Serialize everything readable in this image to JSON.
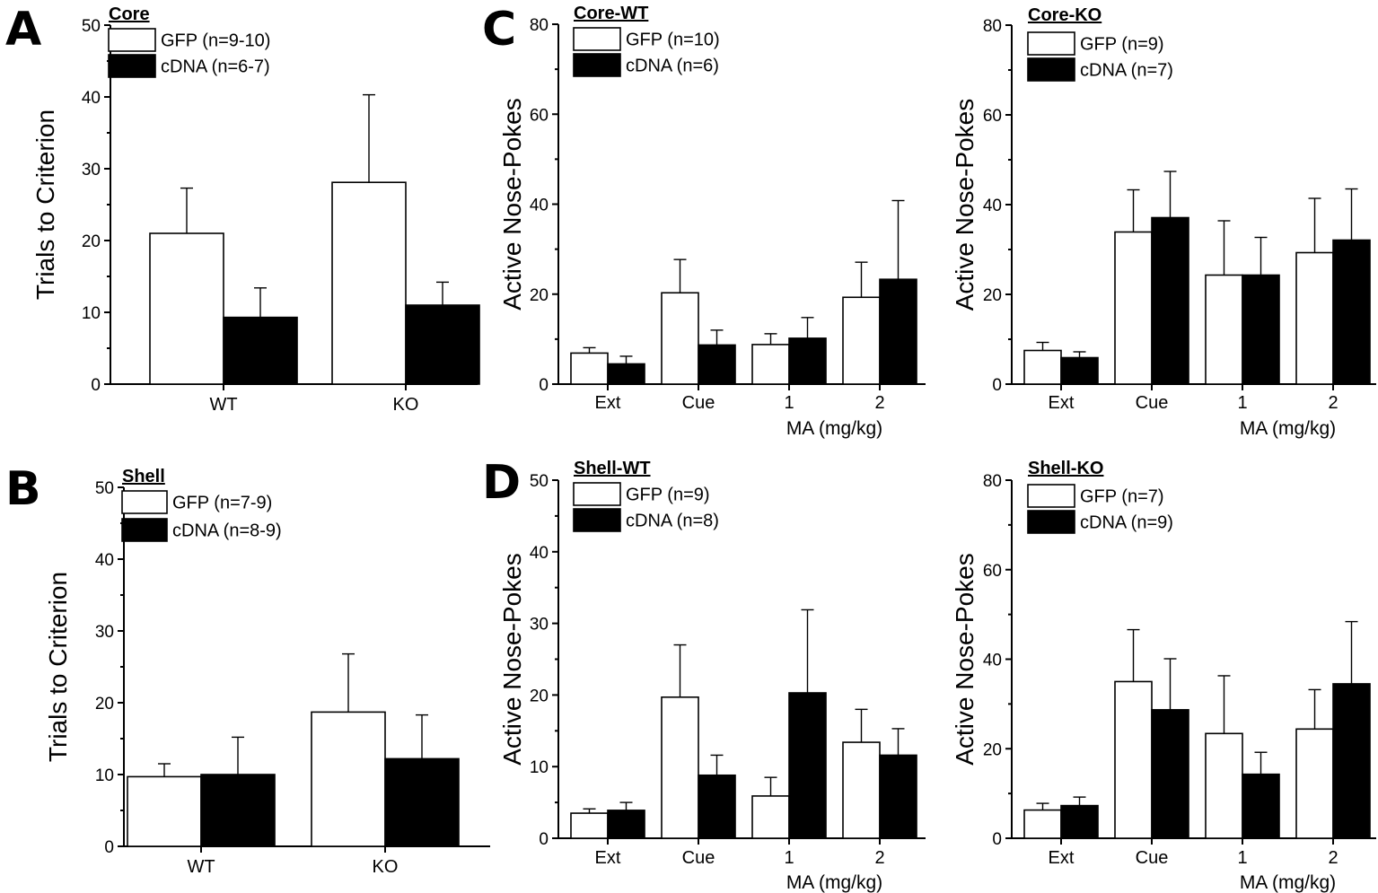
{
  "figure": {
    "colors": {
      "gfp": "#ffffff",
      "cdna": "#000000",
      "stroke": "#000000"
    },
    "panel_labels": [
      "A",
      "B",
      "C",
      "D"
    ]
  },
  "chart_data": [
    {
      "id": "A",
      "type": "bar",
      "panel_label": "A",
      "title": "Core",
      "xlabel": "",
      "ylabel": "Trials to Criterion",
      "ylim": [
        0,
        50
      ],
      "yticks": [
        0,
        10,
        20,
        30,
        40,
        50
      ],
      "categories": [
        "WT",
        "KO"
      ],
      "series": [
        {
          "name": "GFP (n=9-10)",
          "key": "gfp",
          "values": [
            21,
            28.1
          ],
          "errors": [
            6.3,
            12.2
          ]
        },
        {
          "name": "cDNA (n=6-7)",
          "key": "cdna",
          "values": [
            9.3,
            11
          ],
          "errors": [
            4.1,
            3.2
          ]
        }
      ]
    },
    {
      "id": "B",
      "type": "bar",
      "panel_label": "B",
      "title": "Shell",
      "xlabel": "",
      "ylabel": "Trials to Criterion",
      "ylim": [
        0,
        50
      ],
      "yticks": [
        0,
        10,
        20,
        30,
        40,
        50
      ],
      "categories": [
        "WT",
        "KO"
      ],
      "series": [
        {
          "name": "GFP (n=7-9)",
          "key": "gfp",
          "values": [
            9.7,
            18.7
          ],
          "errors": [
            1.8,
            8.1
          ]
        },
        {
          "name": "cDNA (n=8-9)",
          "key": "cdna",
          "values": [
            10,
            12.2
          ],
          "errors": [
            5.2,
            6.1
          ]
        }
      ]
    },
    {
      "id": "C1",
      "type": "bar",
      "panel_label": "C",
      "title": "Core-WT",
      "xlabel": "MA (mg/kg)",
      "ylabel": "Active Nose-Pokes",
      "ylim": [
        0,
        80
      ],
      "yticks": [
        0,
        20,
        40,
        60,
        80
      ],
      "categories": [
        "Ext",
        "Cue",
        "1",
        "2"
      ],
      "series": [
        {
          "name": "GFP (n=10)",
          "key": "gfp",
          "values": [
            6.9,
            20.3,
            8.8,
            19.3
          ],
          "errors": [
            1.2,
            7.4,
            2.4,
            7.8
          ]
        },
        {
          "name": "cDNA (n=6)",
          "key": "cdna",
          "values": [
            4.5,
            8.7,
            10.2,
            23.3
          ],
          "errors": [
            1.7,
            3.3,
            4.6,
            17.5
          ]
        }
      ]
    },
    {
      "id": "C2",
      "type": "bar",
      "panel_label": "",
      "title": "Core-KO",
      "xlabel": "MA (mg/kg)",
      "ylabel": "Active Nose-Pokes",
      "ylim": [
        0,
        80
      ],
      "yticks": [
        0,
        20,
        40,
        60,
        80
      ],
      "categories": [
        "Ext",
        "Cue",
        "1",
        "2"
      ],
      "series": [
        {
          "name": "GFP (n=9)",
          "key": "gfp",
          "values": [
            7.5,
            33.9,
            24.3,
            29.3
          ],
          "errors": [
            1.8,
            9.4,
            12.1,
            12.1
          ]
        },
        {
          "name": "cDNA (n=7)",
          "key": "cdna",
          "values": [
            5.9,
            37.1,
            24.3,
            32.1
          ],
          "errors": [
            1.3,
            10.3,
            8.4,
            11.4
          ]
        }
      ]
    },
    {
      "id": "D1",
      "type": "bar",
      "panel_label": "D",
      "title": "Shell-WT",
      "xlabel": "MA (mg/kg)",
      "ylabel": "Active Nose-Pokes",
      "ylim": [
        0,
        50
      ],
      "yticks": [
        0,
        10,
        20,
        30,
        40,
        50
      ],
      "categories": [
        "Ext",
        "Cue",
        "1",
        "2"
      ],
      "series": [
        {
          "name": "GFP (n=9)",
          "key": "gfp",
          "values": [
            3.5,
            19.7,
            5.9,
            13.4
          ],
          "errors": [
            0.6,
            7.3,
            2.6,
            4.6
          ]
        },
        {
          "name": "cDNA (n=8)",
          "key": "cdna",
          "values": [
            3.9,
            8.8,
            20.3,
            11.6
          ],
          "errors": [
            1.1,
            2.8,
            11.6,
            3.7
          ]
        }
      ]
    },
    {
      "id": "D2",
      "type": "bar",
      "panel_label": "",
      "title": "Shell-KO",
      "xlabel": "MA (mg/kg)",
      "ylabel": "Active Nose-Pokes",
      "ylim": [
        0,
        80
      ],
      "yticks": [
        0,
        20,
        40,
        60,
        80
      ],
      "categories": [
        "Ext",
        "Cue",
        "1",
        "2"
      ],
      "series": [
        {
          "name": "GFP (n=7)",
          "key": "gfp",
          "values": [
            6.3,
            35,
            23.4,
            24.4
          ],
          "errors": [
            1.5,
            11.6,
            12.9,
            8.8
          ]
        },
        {
          "name": "cDNA (n=9)",
          "key": "cdna",
          "values": [
            7.3,
            28.7,
            14.3,
            34.5
          ],
          "errors": [
            1.9,
            11.4,
            4.9,
            13.9
          ]
        }
      ]
    }
  ]
}
